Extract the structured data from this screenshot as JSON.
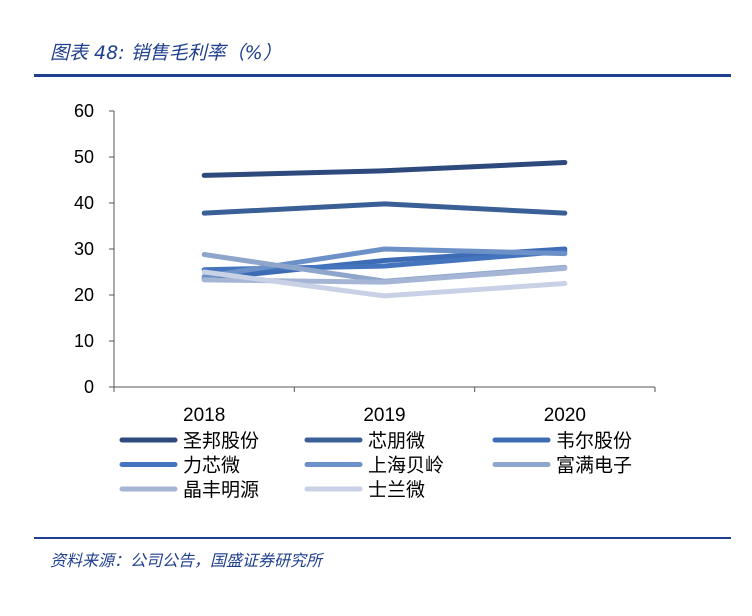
{
  "header": {
    "title": "图表 48:  销售毛利率（%）"
  },
  "footer": {
    "source": "资料来源：公司公告，国盛证券研究所"
  },
  "chart_data": {
    "type": "line",
    "title": "销售毛利率（%）",
    "xlabel": "",
    "ylabel": "",
    "categories": [
      "2018",
      "2019",
      "2020"
    ],
    "ylim": [
      0,
      60
    ],
    "yticks": [
      0,
      10,
      20,
      30,
      40,
      50,
      60
    ],
    "grid": false,
    "legend_position": "bottom",
    "series": [
      {
        "name": "圣邦股份",
        "values": [
          46.0,
          47.0,
          48.8
        ],
        "color": "#2e4a7d"
      },
      {
        "name": "芯朋微",
        "values": [
          37.8,
          39.8,
          37.8
        ],
        "color": "#3a5f97"
      },
      {
        "name": "韦尔股份",
        "values": [
          23.5,
          27.5,
          30.0
        ],
        "color": "#3d6cb5"
      },
      {
        "name": "力芯微",
        "values": [
          25.5,
          26.3,
          29.5
        ],
        "color": "#4474be"
      },
      {
        "name": "上海贝岭",
        "values": [
          24.0,
          30.0,
          29.0
        ],
        "color": "#6c90c8"
      },
      {
        "name": "富满电子",
        "values": [
          28.8,
          23.0,
          26.0
        ],
        "color": "#8ea6cb"
      },
      {
        "name": "晶丰明源",
        "values": [
          23.3,
          22.8,
          25.8
        ],
        "color": "#a5b5d6"
      },
      {
        "name": "士兰微",
        "values": [
          25.0,
          19.8,
          22.5
        ],
        "color": "#c9d1e6"
      }
    ]
  }
}
